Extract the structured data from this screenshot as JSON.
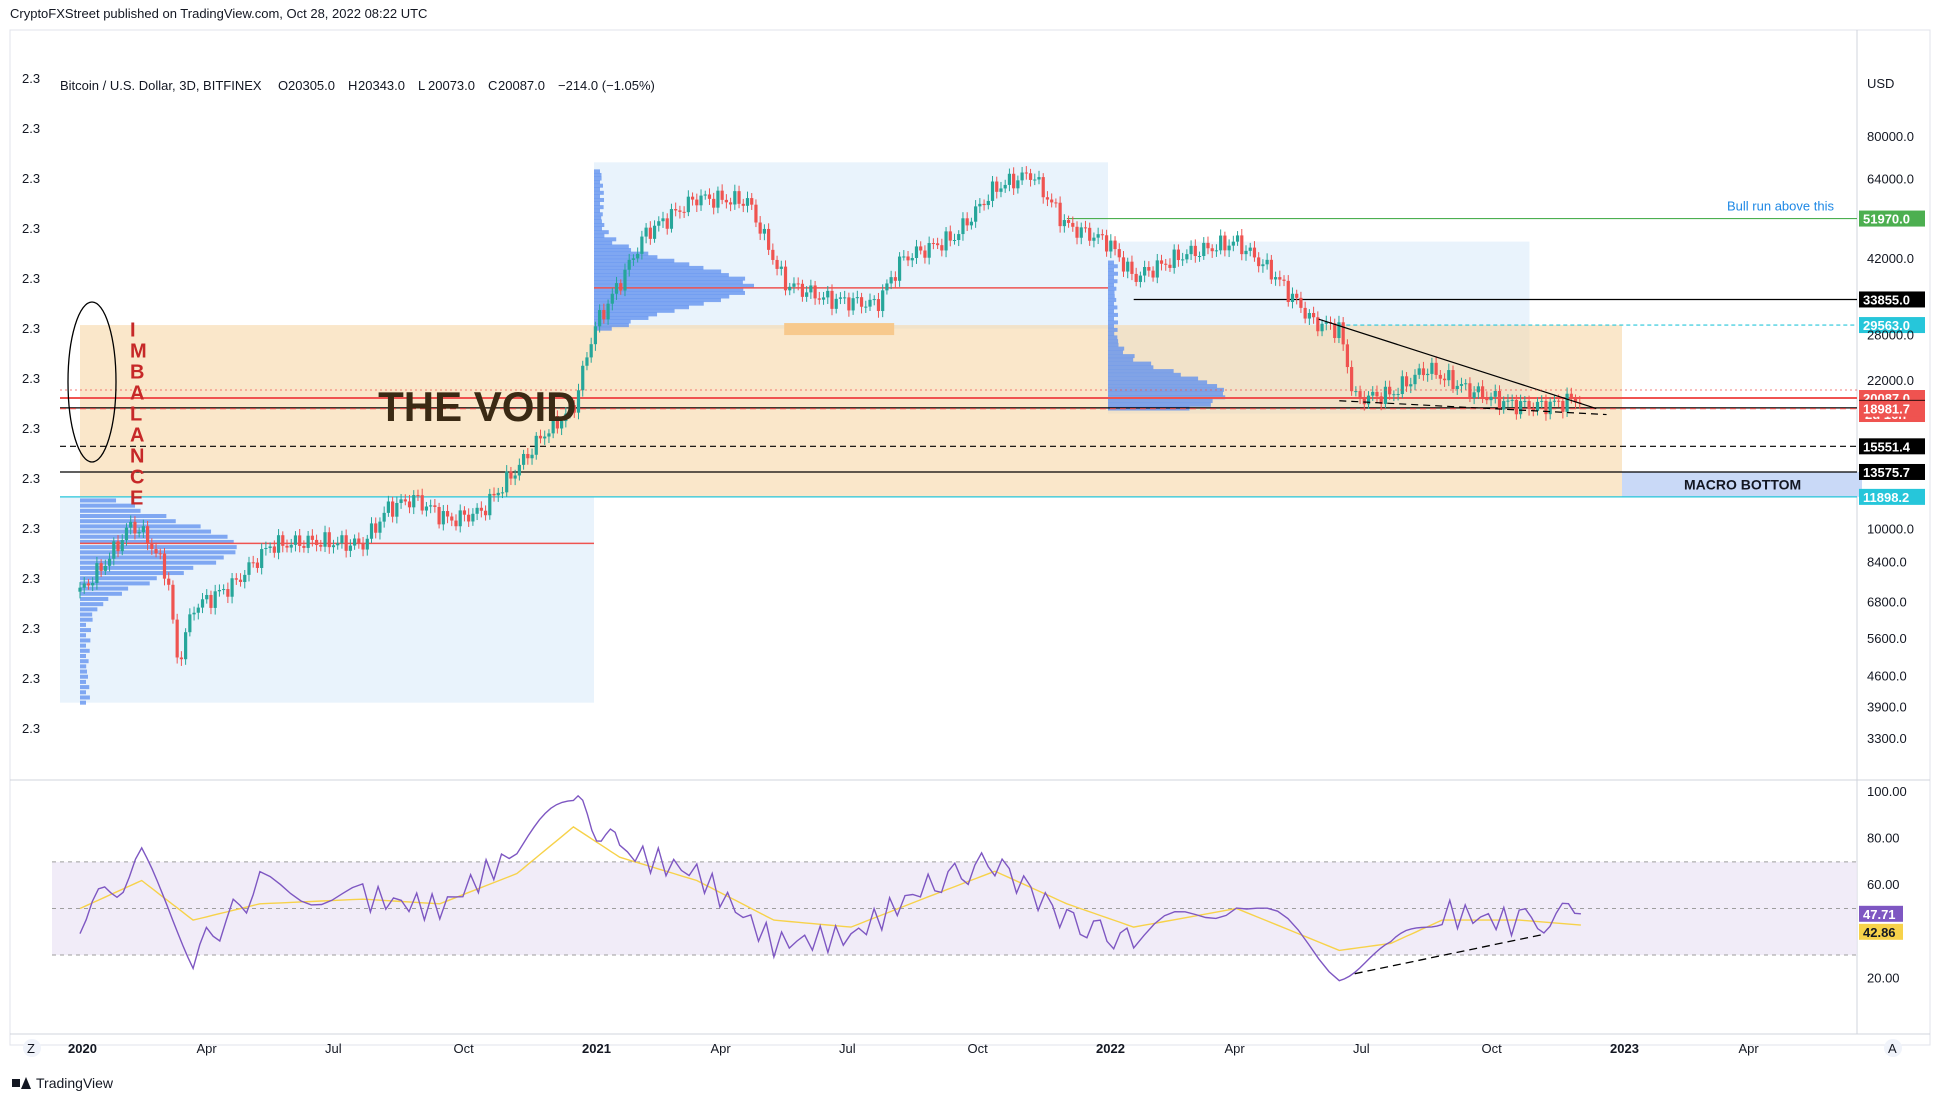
{
  "publisher": "CryptoFXStreet published on TradingView.com, Oct 28, 2022 08:22 UTC",
  "branding": "TradingView",
  "colors": {
    "up": "#26a69a",
    "down": "#ef5350",
    "void_fill": "#f6d7a7",
    "profile_blue": "#5b8def",
    "range_blue": "#e3f0fb",
    "rsi_line": "#7e57c2",
    "rsi_ma": "#f7d24a",
    "green_level": "#4caf50",
    "teal_level": "#26c6da"
  },
  "chart_data": [
    {
      "type": "candlestick",
      "title": "Bitcoin / U.S. Dollar, 3D, BITFINEX",
      "ohlc": {
        "o_label": "O",
        "o": "20305.0",
        "h_label": "H",
        "h": "20343.0",
        "l_label": "L",
        "l": "20073.0",
        "c_label": "C",
        "c": "20087.0",
        "change": "−214.0 (−1.05%)"
      },
      "y_scale": "log",
      "currency": "USD",
      "ylim": [
        2800,
        100000
      ],
      "x_ticks": [
        "2020",
        "Apr",
        "Jul",
        "Oct",
        "2021",
        "Apr",
        "Jul",
        "Oct",
        "2022",
        "Apr",
        "Jul",
        "Oct",
        "2023",
        "Apr"
      ],
      "y_ticks": [
        "80000.0",
        "64000.0",
        "42000.0",
        "28000.0",
        "22000.0",
        "10000.0",
        "8400.0",
        "6800.0",
        "5600.0",
        "4600.0",
        "3900.0",
        "3300.0"
      ],
      "left_axis_labels": [
        "2.3",
        "2.3",
        "2.3",
        "2.3",
        "2.3",
        "2.3",
        "2.3",
        "2.3",
        "2.3",
        "2.3",
        "2.3",
        "2.3",
        "2.3",
        "2.3"
      ],
      "price_path": [
        [
          2020.0,
          7200
        ],
        [
          2020.05,
          8400
        ],
        [
          2020.1,
          10300
        ],
        [
          2020.13,
          9600
        ],
        [
          2020.17,
          7900
        ],
        [
          2020.19,
          4900
        ],
        [
          2020.22,
          6600
        ],
        [
          2020.3,
          7500
        ],
        [
          2020.37,
          9200
        ],
        [
          2020.45,
          9400
        ],
        [
          2020.55,
          9250
        ],
        [
          2020.6,
          11200
        ],
        [
          2020.65,
          11800
        ],
        [
          2020.72,
          10500
        ],
        [
          2020.78,
          11000
        ],
        [
          2020.85,
          13800
        ],
        [
          2020.9,
          16500
        ],
        [
          2020.96,
          19000
        ],
        [
          2021.0,
          29000
        ],
        [
          2021.05,
          37000
        ],
        [
          2021.1,
          48000
        ],
        [
          2021.2,
          58000
        ],
        [
          2021.3,
          57000
        ],
        [
          2021.37,
          37000
        ],
        [
          2021.45,
          34000
        ],
        [
          2021.55,
          33000
        ],
        [
          2021.6,
          42000
        ],
        [
          2021.7,
          47000
        ],
        [
          2021.78,
          61000
        ],
        [
          2021.85,
          66000
        ],
        [
          2021.92,
          50000
        ],
        [
          2022.0,
          46000
        ],
        [
          2022.05,
          38000
        ],
        [
          2022.15,
          43000
        ],
        [
          2022.25,
          46000
        ],
        [
          2022.32,
          39000
        ],
        [
          2022.4,
          30000
        ],
        [
          2022.45,
          29000
        ],
        [
          2022.48,
          20000
        ],
        [
          2022.55,
          20500
        ],
        [
          2022.62,
          23500
        ],
        [
          2022.7,
          21000
        ],
        [
          2022.78,
          19500
        ],
        [
          2022.83,
          19200
        ],
        [
          2022.87,
          19500
        ],
        [
          2022.92,
          20087
        ]
      ],
      "levels": [
        {
          "price": "51970.0",
          "label": "51970.0",
          "color": "#4caf50"
        },
        {
          "price": "33855.0",
          "label": "33855.0",
          "color": "#000000"
        },
        {
          "price": "29563.0",
          "label": "29563.0",
          "color": "#26c6da"
        },
        {
          "price": "20087.0",
          "label": "20087.0",
          "sublabel": "2d 16h",
          "color": "#ef5350"
        },
        {
          "price": "19065.4",
          "label": "19065.4",
          "color": "#000000"
        },
        {
          "price": "18981.7",
          "label": "18981.7",
          "color": "#ef5350"
        },
        {
          "price": "15551.4",
          "label": "15551.4",
          "color": "#000000"
        },
        {
          "price": "13575.7",
          "label": "13575.7",
          "color": "#000000"
        },
        {
          "price": "11898.2",
          "label": "11898.2",
          "color": "#26c6da"
        }
      ],
      "annotations": {
        "void": "THE VOID",
        "imbalance": [
          "I",
          "M",
          "B",
          "A",
          "L",
          "A",
          "N",
          "C",
          "E"
        ],
        "bull_run": "Bull run above this",
        "macro_bottom": "MACRO BOTTOM"
      }
    },
    {
      "type": "line",
      "subtype": "RSI",
      "ylim": [
        15,
        100
      ],
      "y_ticks": [
        "100.00",
        "80.00",
        "60.00",
        "20.00"
      ],
      "rsi_value": "47.71",
      "ma_value": "42.86",
      "series": [
        {
          "values_path": [
            [
              2020.0,
              45
            ],
            [
              2020.12,
              70
            ],
            [
              2020.22,
              30
            ],
            [
              2020.35,
              60
            ],
            [
              2020.55,
              55
            ],
            [
              2020.7,
              50
            ],
            [
              2020.85,
              75
            ],
            [
              2020.96,
              95
            ],
            [
              2021.05,
              75
            ],
            [
              2021.2,
              65
            ],
            [
              2021.35,
              35
            ],
            [
              2021.5,
              38
            ],
            [
              2021.65,
              60
            ],
            [
              2021.78,
              70
            ],
            [
              2021.92,
              45
            ],
            [
              2022.05,
              35
            ],
            [
              2022.25,
              55
            ],
            [
              2022.45,
              25
            ],
            [
              2022.55,
              30
            ],
            [
              2022.65,
              48
            ],
            [
              2022.8,
              44
            ],
            [
              2022.92,
              47.71
            ]
          ]
        },
        {
          "values_path": [
            [
              2020.0,
              50
            ],
            [
              2020.12,
              62
            ],
            [
              2020.22,
              45
            ],
            [
              2020.35,
              52
            ],
            [
              2020.55,
              54
            ],
            [
              2020.7,
              52
            ],
            [
              2020.85,
              65
            ],
            [
              2020.96,
              85
            ],
            [
              2021.05,
              72
            ],
            [
              2021.2,
              62
            ],
            [
              2021.35,
              45
            ],
            [
              2021.5,
              42
            ],
            [
              2021.65,
              55
            ],
            [
              2021.78,
              66
            ],
            [
              2021.92,
              52
            ],
            [
              2022.05,
              42
            ],
            [
              2022.25,
              50
            ],
            [
              2022.45,
              32
            ],
            [
              2022.55,
              35
            ],
            [
              2022.65,
              45
            ],
            [
              2022.8,
              45
            ],
            [
              2022.92,
              42.86
            ]
          ]
        }
      ]
    }
  ],
  "bottom_axis": {
    "left_button": "Z",
    "right_button": "A"
  }
}
